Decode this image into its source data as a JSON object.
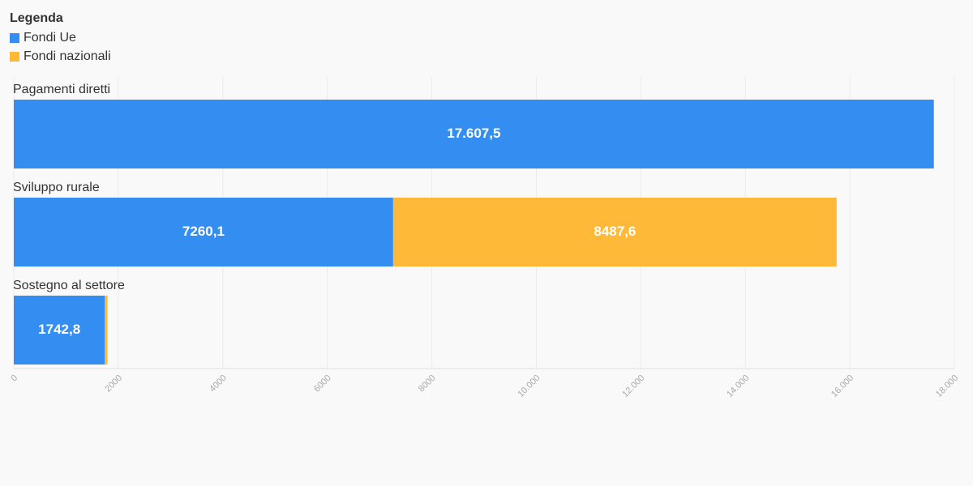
{
  "chart_data": {
    "type": "bar",
    "orientation": "horizontal",
    "stacked": true,
    "legend_title": "Legenda",
    "categories": [
      "Pagamenti diretti",
      "Sviluppo rurale",
      "Sostegno al settore"
    ],
    "series": [
      {
        "name": "Fondi Ue",
        "color": "#348df0",
        "values": [
          17607.5,
          7260.1,
          1742.8
        ],
        "value_labels": [
          "17.607,5",
          "7260,1",
          "1742,8"
        ]
      },
      {
        "name": "Fondi nazionali",
        "color": "#ffb938",
        "values": [
          0,
          8487.6,
          50
        ],
        "value_labels": [
          null,
          "8487,6",
          null
        ]
      }
    ],
    "xlim": [
      0,
      18000
    ],
    "xticks": [
      0,
      2000,
      4000,
      6000,
      8000,
      {
        "value": 10000,
        "label": "10.000"
      },
      {
        "value": 12000,
        "label": "12.000"
      },
      {
        "value": 14000,
        "label": "14.000"
      },
      {
        "value": 16000,
        "label": "16.000"
      },
      {
        "value": 18000,
        "label": "18.000"
      }
    ],
    "grid": true
  }
}
